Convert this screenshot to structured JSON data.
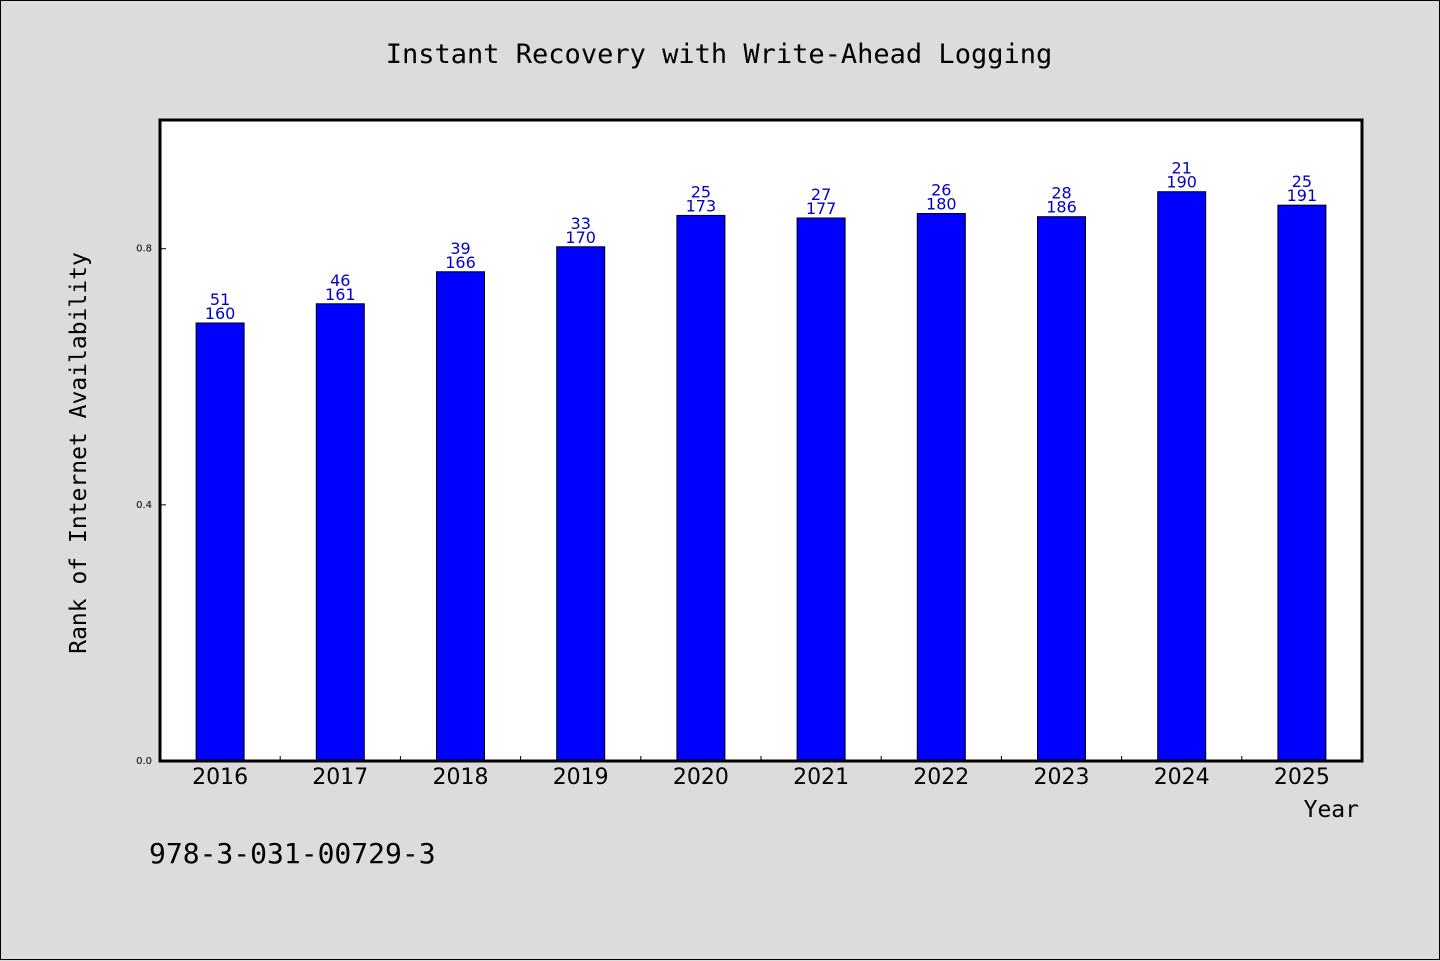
{
  "chart_data": {
    "type": "bar",
    "title": "Instant Recovery with Write-Ahead Logging",
    "xlabel": "Year",
    "ylabel": "Rank of Internet Availability",
    "ylim": [
      0,
      1.0
    ],
    "yticks": [
      "0.0",
      "0.4",
      "0.8"
    ],
    "categories": [
      "2016",
      "2017",
      "2018",
      "2019",
      "2020",
      "2021",
      "2022",
      "2023",
      "2024",
      "2025"
    ],
    "values": [
      0.684,
      0.714,
      0.764,
      0.803,
      0.852,
      0.848,
      0.855,
      0.85,
      0.889,
      0.868
    ],
    "annotations_top": [
      "51",
      "46",
      "39",
      "33",
      "25",
      "27",
      "26",
      "28",
      "21",
      "25"
    ],
    "annotations_bottom": [
      "160",
      "161",
      "166",
      "170",
      "173",
      "177",
      "180",
      "186",
      "190",
      "191"
    ],
    "bar_color": "#0000ff",
    "label_color": "#0000cc",
    "grid": false,
    "legend": "none"
  },
  "footer": {
    "isbn": "978-3-031-00729-3"
  }
}
